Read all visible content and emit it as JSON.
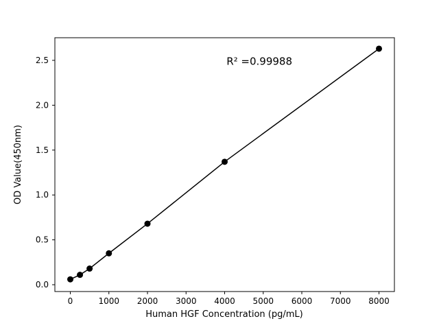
{
  "chart_data": {
    "type": "scatter",
    "x": [
      0,
      250,
      500,
      1000,
      2000,
      4000,
      8000
    ],
    "y": [
      0.06,
      0.11,
      0.18,
      0.35,
      0.68,
      1.37,
      2.63
    ],
    "title": "",
    "xlabel": "Human HGF Concentration (pg/mL)",
    "ylabel": "OD Value(450nm)",
    "xticks": [
      0,
      1000,
      2000,
      3000,
      4000,
      5000,
      6000,
      7000,
      8000
    ],
    "yticks": [
      0.0,
      0.5,
      1.0,
      1.5,
      2.0,
      2.5
    ],
    "xlim": [
      -400,
      8400
    ],
    "ylim": [
      -0.076,
      2.752
    ],
    "annotation": "R² =0.99988",
    "annotation_pos": {
      "x": 4900,
      "y": 2.45
    },
    "line": true,
    "grid": false,
    "legend": "none",
    "marker_color": "#000000",
    "line_color": "#000000",
    "background_color": "#ffffff"
  }
}
